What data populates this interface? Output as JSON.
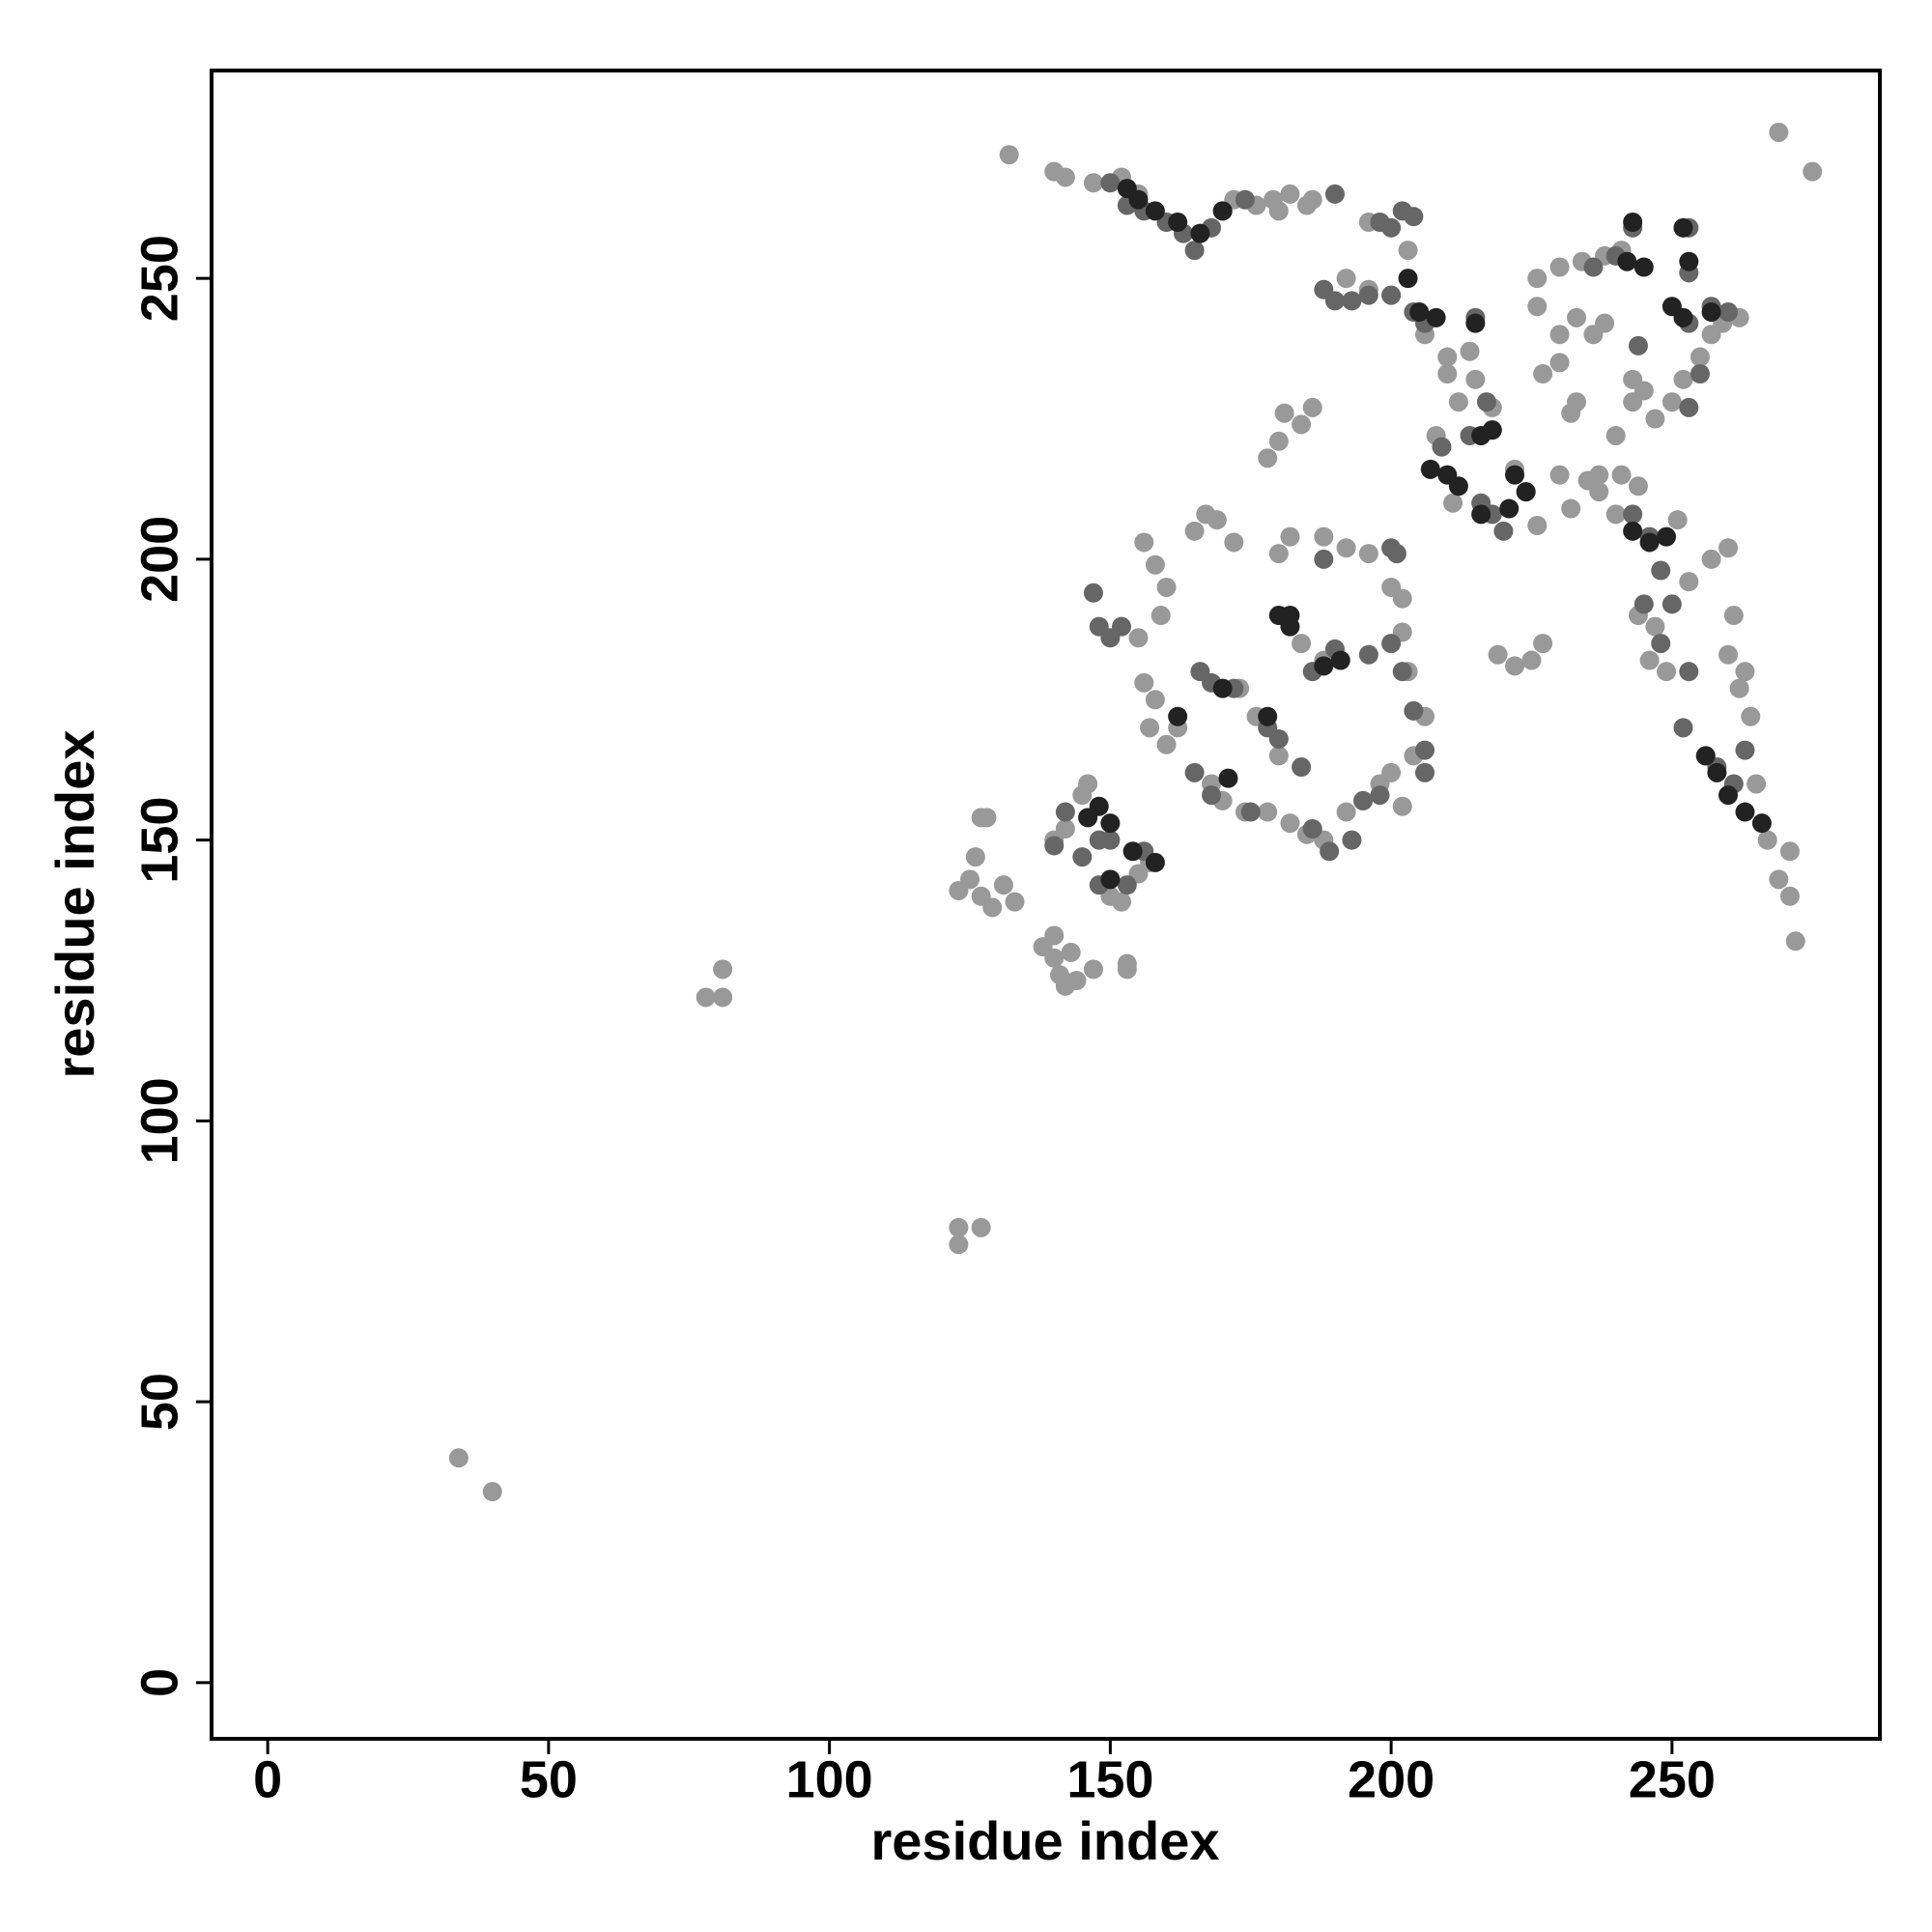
{
  "chart_data": {
    "type": "scatter",
    "xlabel": "residue index",
    "ylabel": "residue index",
    "xlim": [
      -10,
      287
    ],
    "ylim": [
      -10,
      287
    ],
    "xticks": [
      0,
      50,
      100,
      150,
      200,
      250
    ],
    "yticks": [
      0,
      50,
      100,
      150,
      200,
      250
    ],
    "series": [
      {
        "color": "#999999",
        "x": [
          34,
          40,
          78,
          81,
          81,
          123,
          123,
          127,
          132,
          140,
          142,
          147,
          152,
          155,
          269,
          275,
          272,
          123,
          125,
          127,
          129,
          131,
          133,
          126,
          127,
          128,
          138,
          140,
          141,
          142,
          144,
          143,
          140,
          147,
          153,
          153,
          140,
          142,
          145,
          146,
          155,
          157,
          150,
          152,
          156,
          158,
          160,
          159,
          155,
          156,
          158,
          157,
          160,
          162,
          165,
          167,
          169,
          172,
          168,
          170,
          174,
          178,
          182,
          185,
          188,
          192,
          195,
          198,
          200,
          202,
          204,
          206,
          203,
          202,
          202,
          200,
          196,
          192,
          188,
          182,
          180,
          173,
          176,
          180,
          188,
          184,
          178,
          181,
          184,
          186,
          180,
          192,
          196,
          200,
          196,
          203,
          206,
          210,
          210,
          215,
          218,
          212,
          208,
          211,
          214,
          222,
          224,
          226,
          230,
          232,
          235,
          237,
          240,
          227,
          230,
          232,
          233,
          237,
          241,
          244,
          226,
          230,
          233,
          236,
          238,
          226,
          230,
          234,
          238,
          241,
          243,
          245,
          247,
          250,
          252,
          255,
          257,
          259,
          262,
          227,
          225,
          219,
          222,
          251,
          253,
          257,
          260,
          261,
          260,
          262,
          264,
          263,
          265,
          267,
          269,
          271,
          271,
          244,
          247,
          249,
          246,
          240,
          243,
          172,
          176,
          179,
          182,
          186,
          180,
          185
        ],
        "y": [
          40,
          34,
          122,
          122,
          127,
          81,
          78,
          81,
          272,
          269,
          268,
          267,
          268,
          265,
          276,
          269,
          132,
          141,
          143,
          140,
          138,
          142,
          139,
          147,
          154,
          154,
          131,
          129,
          126,
          124,
          125,
          130,
          133,
          127,
          128,
          127,
          150,
          152,
          158,
          160,
          144,
          146,
          140,
          139,
          203,
          199,
          195,
          190,
          186,
          178,
          175,
          170,
          167,
          170,
          205,
          208,
          207,
          203,
          160,
          157,
          155,
          155,
          153,
          151,
          150,
          155,
          157,
          160,
          162,
          156,
          165,
          172,
          180,
          187,
          193,
          195,
          201,
          202,
          204,
          204,
          201,
          177,
          172,
          165,
          182,
          185,
          218,
          226,
          224,
          227,
          221,
          250,
          248,
          247,
          260,
          255,
          240,
          236,
          233,
          232,
          227,
          228,
          222,
          210,
          237,
          216,
          212,
          206,
          215,
          209,
          214,
          212,
          208,
          233,
          235,
          226,
          228,
          215,
          215,
          213,
          245,
          240,
          243,
          240,
          242,
          250,
          252,
          253,
          254,
          255,
          232,
          230,
          225,
          228,
          232,
          236,
          240,
          242,
          243,
          185,
          182,
          183,
          181,
          207,
          196,
          200,
          202,
          190,
          183,
          177,
          172,
          180,
          160,
          150,
          143,
          140,
          148,
          190,
          188,
          180,
          182,
          222,
          228,
          264,
          263,
          264,
          265,
          264,
          262,
          263
        ]
      },
      {
        "color": "#666666",
        "x": [
          150,
          153,
          156,
          160,
          163,
          165,
          168,
          170,
          174,
          190,
          198,
          200,
          202,
          204,
          188,
          190,
          193,
          196,
          200,
          204,
          206,
          215,
          218,
          217,
          214,
          209,
          216,
          220,
          218,
          243,
          246,
          248,
          245,
          248,
          250,
          253,
          252,
          256,
          258,
          261,
          263,
          253,
          257,
          260,
          255,
          253,
          244,
          236,
          240,
          243,
          253,
          253,
          150,
          152,
          148,
          147,
          166,
          168,
          172,
          178,
          180,
          186,
          190,
          196,
          200,
          202,
          206,
          204,
          206,
          165,
          150,
          148,
          142,
          145,
          148,
          153,
          156,
          195,
          198,
          200,
          184,
          168,
          175,
          186,
          189,
          193,
          201,
          188,
          140
        ],
        "y": [
          267,
          263,
          262,
          260,
          258,
          255,
          259,
          262,
          264,
          265,
          260,
          259,
          262,
          261,
          248,
          246,
          246,
          247,
          247,
          244,
          242,
          243,
          223,
          228,
          222,
          220,
          210,
          205,
          208,
          208,
          204,
          198,
          192,
          185,
          192,
          180,
          170,
          165,
          163,
          160,
          166,
          242,
          245,
          244,
          233,
          227,
          238,
          252,
          254,
          259,
          251,
          259,
          186,
          188,
          188,
          194,
          180,
          178,
          177,
          170,
          168,
          180,
          184,
          183,
          185,
          180,
          166,
          173,
          162,
          162,
          150,
          150,
          155,
          147,
          142,
          142,
          148,
          157,
          158,
          202,
          163,
          158,
          155,
          152,
          148,
          150,
          201,
          200,
          149
        ]
      },
      {
        "color": "#222222",
        "x": [
          153,
          155,
          158,
          162,
          166,
          170,
          171,
          170,
          178,
          180,
          182,
          182,
          188,
          191,
          150,
          146,
          148,
          150,
          154,
          158,
          162,
          203,
          205,
          208,
          207,
          210,
          212,
          216,
          218,
          216,
          222,
          224,
          221,
          243,
          246,
          250,
          252,
          257,
          253,
          252,
          249,
          243,
          245,
          242,
          260,
          263,
          266,
          258,
          256,
          215
        ],
        "y": [
          266,
          264,
          262,
          260,
          258,
          262,
          161,
          177,
          172,
          190,
          190,
          188,
          181,
          182,
          143,
          154,
          156,
          153,
          148,
          146,
          172,
          250,
          244,
          243,
          216,
          215,
          213,
          222,
          223,
          208,
          215,
          212,
          209,
          205,
          203,
          245,
          243,
          244,
          253,
          259,
          204,
          260,
          252,
          253,
          158,
          155,
          153,
          162,
          165,
          242
        ]
      }
    ]
  }
}
